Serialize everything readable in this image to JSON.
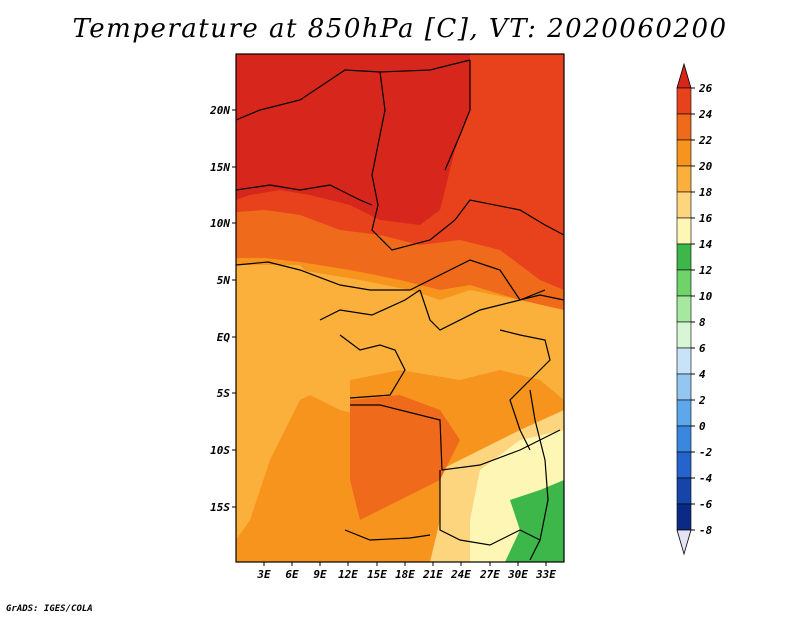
{
  "title": "Temperature at 850hPa [C], VT: 2020060200",
  "credit": "GrADS: IGES/COLA",
  "map": {
    "lat_labels": [
      "20N",
      "15N",
      "10N",
      "5N",
      "EQ",
      "5S",
      "10S",
      "15S"
    ],
    "lon_labels": [
      "3E",
      "6E",
      "9E",
      "12E",
      "15E",
      "18E",
      "21E",
      "24E",
      "27E",
      "30E",
      "33E"
    ]
  },
  "colorbar": {
    "labels": [
      "26",
      "24",
      "22",
      "20",
      "18",
      "16",
      "14",
      "12",
      "10",
      "8",
      "6",
      "4",
      "2",
      "0",
      "-2",
      "-4",
      "-6",
      "-8"
    ],
    "colors": [
      "#d7261b",
      "#e8421c",
      "#ef6a1b",
      "#f7941d",
      "#fbb03b",
      "#fdd57f",
      "#fef6b5",
      "#3db74a",
      "#6fd36a",
      "#a6e8a0",
      "#d8f5d6",
      "#c8e3f8",
      "#94c6f2",
      "#5ea7ea",
      "#3a88de",
      "#2564cc",
      "#1645aa",
      "#0a2a85",
      "#06126a",
      "#e4e2f4"
    ]
  },
  "field_colors": {
    "c26": "#d7261b",
    "c24": "#e8421c",
    "c22": "#ef6a1b",
    "c20": "#f7941d",
    "c18": "#fbb03b",
    "c16": "#fdd57f",
    "c14": "#fef6b5",
    "c12": "#3db74a"
  }
}
